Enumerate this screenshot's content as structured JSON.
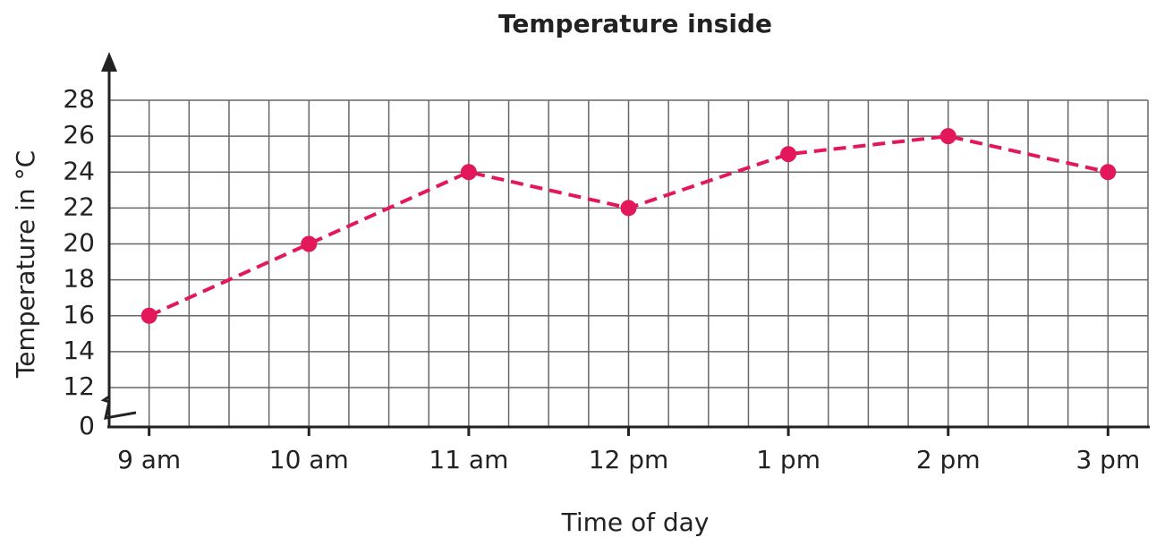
{
  "chart_data": {
    "type": "line",
    "title": "Temperature inside",
    "x_label": "Time of day",
    "y_label": "Temperature in °C",
    "categories": [
      "9 am",
      "10 am",
      "11 am",
      "12 pm",
      "1 pm",
      "2 pm",
      "3 pm"
    ],
    "series": [
      {
        "name": "Temperature",
        "color": "#e3185b",
        "values": [
          16,
          20,
          24,
          22,
          25,
          26,
          24
        ]
      }
    ],
    "ylim": [
      0,
      28
    ],
    "yticks": [
      0,
      12,
      14,
      16,
      18,
      20,
      22,
      24,
      26,
      28
    ],
    "y_axis_break": true,
    "grid": true,
    "line_style": "dashed"
  }
}
